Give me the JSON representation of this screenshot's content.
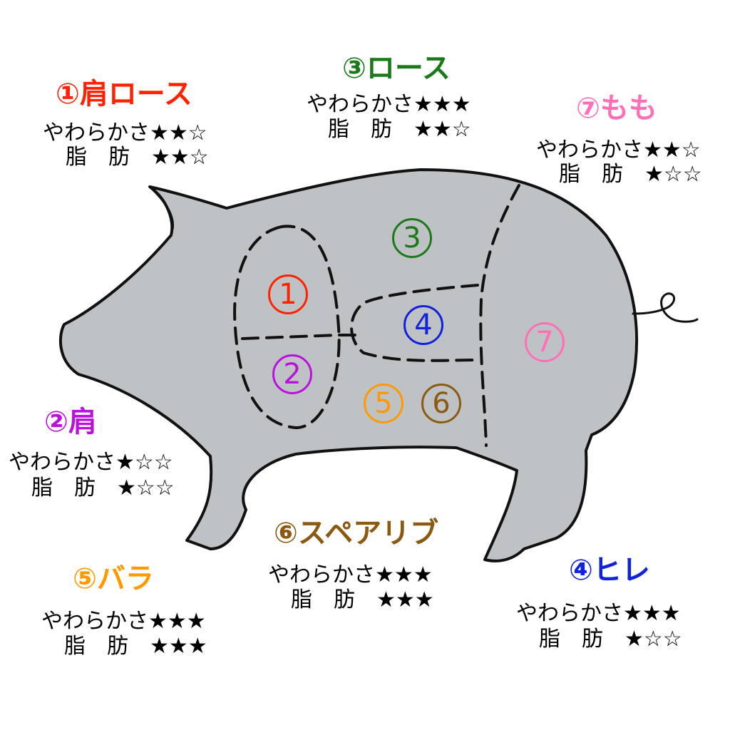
{
  "colors": {
    "shoulder_loin": "#ff2200",
    "shoulder": "#bb11dd",
    "loin": "#1a7a1a",
    "tenderloin": "#1122dd",
    "belly": "#ff9900",
    "spare_rib": "#8b5a10",
    "ham": "#ff6fb8",
    "body_fill": "#bfc2c4",
    "outline": "#111111"
  },
  "region_numbers": {
    "shoulder_loin": "1",
    "shoulder": "2",
    "loin": "3",
    "tenderloin": "4",
    "belly": "5",
    "spare_rib": "6",
    "ham": "7"
  },
  "cuts": {
    "shoulder_loin": {
      "title": "①肩ロース",
      "tenderness_label": "やわらかさ",
      "tenderness_stars": "★★☆",
      "fat_label_1": "脂",
      "fat_label_2": "肪",
      "fat_stars": "★★☆",
      "tenderness": 2,
      "fat": 2
    },
    "loin": {
      "title": "③ロース",
      "tenderness_label": "やわらかさ",
      "tenderness_stars": "★★★",
      "fat_label_1": "脂",
      "fat_label_2": "肪",
      "fat_stars": "★★☆",
      "tenderness": 3,
      "fat": 2
    },
    "ham": {
      "title": "⑦もも",
      "tenderness_label": "やわらかさ",
      "tenderness_stars": "★★☆",
      "fat_label_1": "脂",
      "fat_label_2": "肪",
      "fat_stars": "★☆☆",
      "tenderness": 2,
      "fat": 1
    },
    "shoulder": {
      "title": "②肩",
      "tenderness_label": "やわらかさ",
      "tenderness_stars": "★☆☆",
      "fat_label_1": "脂",
      "fat_label_2": "肪",
      "fat_stars": "★☆☆",
      "tenderness": 1,
      "fat": 1
    },
    "spare_rib": {
      "title": "⑥スペアリブ",
      "tenderness_label": "やわらかさ",
      "tenderness_stars": "★★★",
      "fat_label_1": "脂",
      "fat_label_2": "肪",
      "fat_stars": "★★★",
      "tenderness": 3,
      "fat": 3
    },
    "belly": {
      "title": "⑤バラ",
      "tenderness_label": "やわらかさ",
      "tenderness_stars": "★★★",
      "fat_label_1": "脂",
      "fat_label_2": "肪",
      "fat_stars": "★★★",
      "tenderness": 3,
      "fat": 3
    },
    "tenderloin": {
      "title": "④ヒレ",
      "tenderness_label": "やわらかさ",
      "tenderness_stars": "★★★",
      "fat_label_1": "脂",
      "fat_label_2": "肪",
      "fat_stars": "★☆☆",
      "tenderness": 3,
      "fat": 1
    }
  }
}
